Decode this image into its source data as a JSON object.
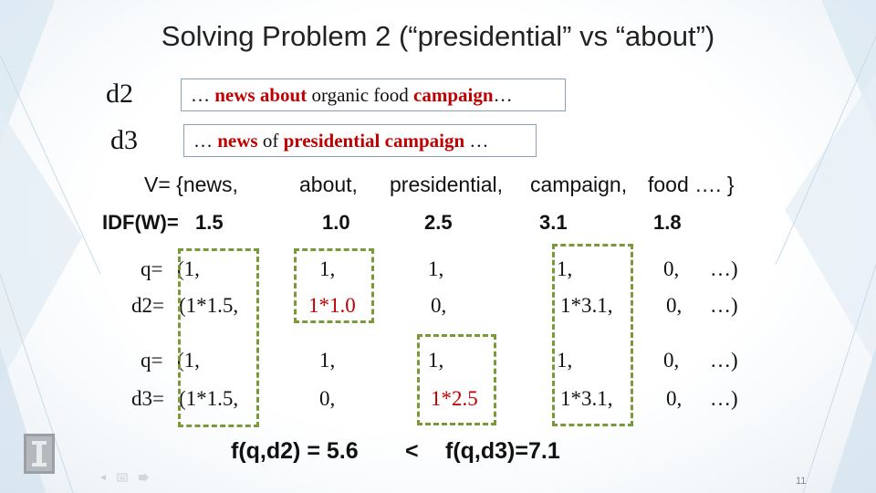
{
  "title": "Solving Problem 2 (“presidential” vs “about”)",
  "docs": {
    "d2": {
      "label": "d2",
      "pre": "… ",
      "w1": "news about",
      "mid": " organic food ",
      "w2": "campaign",
      "post": "…"
    },
    "d3": {
      "label": "d3",
      "pre": "… ",
      "w1": "news",
      "mid": " of ",
      "w2": "presidential campaign",
      "post": " …"
    }
  },
  "vocab": {
    "prefix": "V= {news,",
    "words": [
      "about,",
      "presidential,",
      "campaign,",
      "food …. }"
    ]
  },
  "idf": {
    "label": "IDF(W)=",
    "values": [
      "1.5",
      "1.0",
      "2.5",
      "3.1",
      "1.8"
    ]
  },
  "rows": {
    "q1": {
      "label": "q=",
      "cells": [
        "(1,",
        "1,",
        "1,",
        "1,",
        "0,",
        "…)"
      ]
    },
    "d2": {
      "label": "d2=",
      "cells": [
        "(1*1.5,",
        "1*1.0",
        "0,",
        "1*3.1,",
        "0,",
        "…)"
      ]
    },
    "q2": {
      "label": "q=",
      "cells": [
        "(1,",
        "1,",
        "1,",
        "1,",
        "0,",
        "…)"
      ]
    },
    "d3": {
      "label": "d3=",
      "cells": [
        "(1*1.5,",
        "0,",
        "1*2.5",
        "1*3.1,",
        "0,",
        "…)"
      ]
    }
  },
  "scores": {
    "left": "f(q,d2) = 5.6",
    "op": "<",
    "right": "f(q,d3)=7.1"
  },
  "page_number": "11",
  "colors": {
    "highlight": "#c00000",
    "dash_box": "#7a9a3a"
  }
}
